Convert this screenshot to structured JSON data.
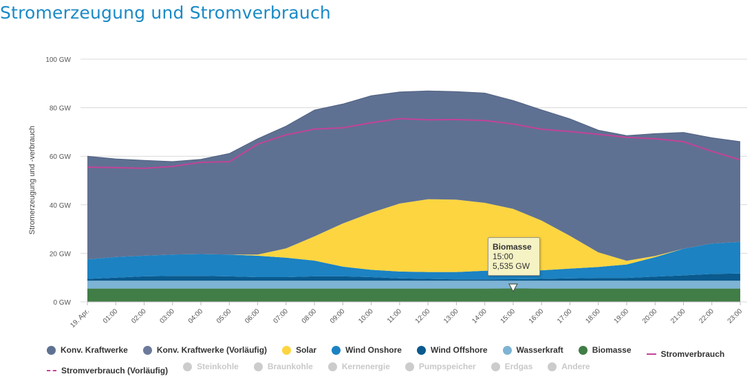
{
  "page": {
    "title": "Stromerzeugung und Stromverbrauch"
  },
  "chart_data": {
    "type": "area",
    "title": "Stromerzeugung und Stromverbrauch",
    "xlabel": "",
    "ylabel": "Stromerzeugung und -verbrauch",
    "ylim": [
      0,
      100
    ],
    "grid": true,
    "legend_position": "bottom",
    "x": [
      "19. Apr.",
      "01:00",
      "02:00",
      "03:00",
      "04:00",
      "05:00",
      "06:00",
      "07:00",
      "08:00",
      "09:00",
      "10:00",
      "11:00",
      "12:00",
      "13:00",
      "14:00",
      "15:00",
      "16:00",
      "17:00",
      "18:00",
      "19:00",
      "20:00",
      "21:00",
      "22:00",
      "23:00"
    ],
    "y_ticks": [
      "0 GW",
      "20 GW",
      "40 GW",
      "60 GW",
      "80 GW",
      "100 GW"
    ],
    "series": [
      {
        "name": "Biomasse",
        "color": "#417d47",
        "values": [
          5.5,
          5.5,
          5.5,
          5.5,
          5.5,
          5.5,
          5.5,
          5.5,
          5.5,
          5.5,
          5.5,
          5.5,
          5.5,
          5.5,
          5.5,
          5.535,
          5.5,
          5.5,
          5.5,
          5.5,
          5.5,
          5.5,
          5.5,
          5.5
        ]
      },
      {
        "name": "Wasserkraft",
        "color": "#7db3d4",
        "values": [
          3.2,
          3.2,
          3.2,
          3.2,
          3.2,
          3.2,
          3.2,
          3.2,
          3.2,
          3.2,
          3.2,
          3.2,
          3.2,
          3.2,
          3.2,
          3.2,
          3.2,
          3.2,
          3.2,
          3.2,
          3.2,
          3.2,
          3.2,
          3.2
        ]
      },
      {
        "name": "Wind Offshore",
        "color": "#0a5a8e",
        "values": [
          0.8,
          1.3,
          1.8,
          2.0,
          2.0,
          1.8,
          1.5,
          1.5,
          1.8,
          1.8,
          1.5,
          1.0,
          0.8,
          0.6,
          0.6,
          0.6,
          0.8,
          1.0,
          1.2,
          1.2,
          1.7,
          2.2,
          2.8,
          3.0
        ]
      },
      {
        "name": "Wind Onshore",
        "color": "#1c82c2",
        "values": [
          8.0,
          8.5,
          8.5,
          8.8,
          9.0,
          9.0,
          8.8,
          8.0,
          6.5,
          4.0,
          3.0,
          2.8,
          2.8,
          3.0,
          3.5,
          3.8,
          3.5,
          4.0,
          4.5,
          5.5,
          8.0,
          11.0,
          12.5,
          13.0
        ]
      },
      {
        "name": "Solar",
        "color": "#fdd541",
        "values": [
          0,
          0,
          0,
          0,
          0,
          0,
          0.5,
          3.8,
          10.0,
          17.8,
          23.5,
          28.0,
          30.0,
          29.8,
          28.0,
          25.2,
          20.5,
          13.5,
          6.0,
          1.5,
          0.5,
          0,
          0,
          0
        ]
      },
      {
        "name": "Konv. Kraftwerke",
        "color": "#5f7192",
        "values": [
          42.5,
          40.4,
          39.3,
          38.3,
          39.0,
          41.6,
          47.7,
          50.4,
          52.0,
          49.2,
          48.2,
          46.0,
          44.6,
          44.5,
          45.2,
          44.6,
          45.6,
          48.2,
          50.3,
          51.6,
          50.4,
          47.9,
          43.6,
          41.3
        ]
      }
    ],
    "consumption": {
      "name": "Stromverbrauch",
      "color": "#c2439a",
      "values": [
        55.5,
        55.3,
        55.0,
        55.8,
        57.5,
        57.7,
        65.0,
        68.8,
        71.2,
        71.7,
        73.8,
        75.5,
        75.0,
        75.1,
        74.7,
        73.3,
        71.1,
        70.2,
        69.0,
        67.8,
        67.2,
        66.0,
        62.0,
        58.5
      ]
    },
    "tooltip": {
      "series": "Biomasse",
      "time": "15:00",
      "value": "5,535 GW"
    }
  },
  "legend": {
    "row1": [
      {
        "label": "Konv. Kraftwerke",
        "color": "#5f7192",
        "symbol": "dot",
        "active": true
      },
      {
        "label": "Konv. Kraftwerke (Vorläufig)",
        "color": "#6b7a9b",
        "symbol": "dot",
        "active": true
      },
      {
        "label": "Solar",
        "color": "#fdd541",
        "symbol": "dot",
        "active": true
      },
      {
        "label": "Wind Onshore",
        "color": "#1c82c2",
        "symbol": "dot",
        "active": true
      },
      {
        "label": "Wind Offshore",
        "color": "#0a5a8e",
        "symbol": "dot",
        "active": true
      },
      {
        "label": "Wasserkraft",
        "color": "#7db3d4",
        "symbol": "dot",
        "active": true
      },
      {
        "label": "Biomasse",
        "color": "#417d47",
        "symbol": "dot",
        "active": true
      },
      {
        "label": "Stromverbrauch",
        "color": "#c2439a",
        "symbol": "line",
        "active": true
      }
    ],
    "row2": [
      {
        "label": "Stromverbrauch (Vorläufig)",
        "color": "#c2439a",
        "symbol": "dash",
        "active": true
      },
      {
        "label": "Steinkohle",
        "color": "#cccccc",
        "symbol": "dot",
        "active": false
      },
      {
        "label": "Braunkohle",
        "color": "#cccccc",
        "symbol": "dot",
        "active": false
      },
      {
        "label": "Kernenergie",
        "color": "#cccccc",
        "symbol": "dot",
        "active": false
      },
      {
        "label": "Pumpspeicher",
        "color": "#cccccc",
        "symbol": "dot",
        "active": false
      },
      {
        "label": "Erdgas",
        "color": "#cccccc",
        "symbol": "dot",
        "active": false
      },
      {
        "label": "Andere",
        "color": "#cccccc",
        "symbol": "dot",
        "active": false
      }
    ]
  }
}
